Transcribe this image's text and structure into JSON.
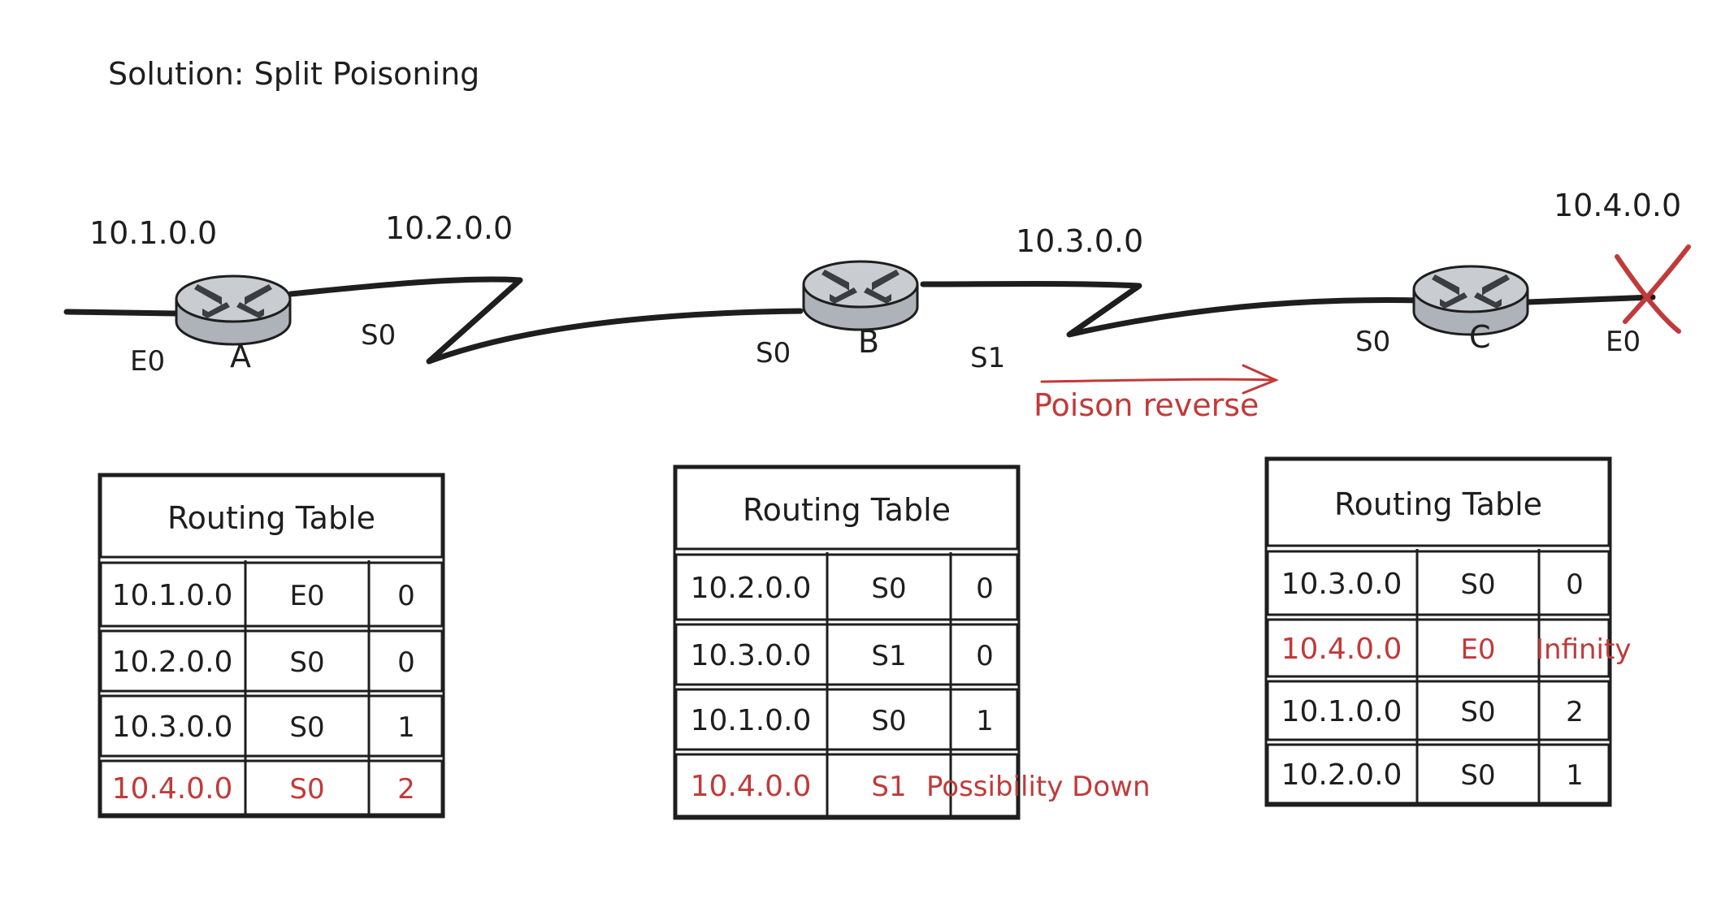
{
  "title": "Solution: Split Poisoning",
  "networks": {
    "n1": "10.1.0.0",
    "n2": "10.2.0.0",
    "n3": "10.3.0.0",
    "n4": "10.4.0.0"
  },
  "routers": {
    "a": "A",
    "b": "B",
    "c": "C"
  },
  "interfaces": {
    "a_e0": "E0",
    "a_s0": "S0",
    "b_s0": "S0",
    "b_s1": "S1",
    "c_s0": "S0",
    "c_e0": "E0"
  },
  "annotation": "Poison reverse",
  "colors": {
    "ink": "#1e1e1e",
    "accent": "#c13a3a",
    "router_fill": "#c9cdd2"
  },
  "tables": {
    "a": {
      "header": "Routing Table",
      "rows": [
        {
          "net": "10.1.0.0",
          "iface": "E0",
          "hops": "0"
        },
        {
          "net": "10.2.0.0",
          "iface": "S0",
          "hops": "0"
        },
        {
          "net": "10.3.0.0",
          "iface": "S0",
          "hops": "1"
        },
        {
          "net": "10.4.0.0",
          "iface": "S0",
          "hops": "2"
        }
      ]
    },
    "b": {
      "header": "Routing Table",
      "rows": [
        {
          "net": "10.2.0.0",
          "iface": "S0",
          "hops": "0"
        },
        {
          "net": "10.3.0.0",
          "iface": "S1",
          "hops": "0"
        },
        {
          "net": "10.1.0.0",
          "iface": "S0",
          "hops": "1"
        },
        {
          "net": "10.4.0.0",
          "iface": "S1",
          "hops": "Possibility Down"
        }
      ]
    },
    "c": {
      "header": "Routing Table",
      "rows": [
        {
          "net": "10.3.0.0",
          "iface": "S0",
          "hops": "0"
        },
        {
          "net": "10.4.0.0",
          "iface": "E0",
          "hops": "Infinity"
        },
        {
          "net": "10.1.0.0",
          "iface": "S0",
          "hops": "2"
        },
        {
          "net": "10.2.0.0",
          "iface": "S0",
          "hops": "1"
        }
      ]
    }
  }
}
